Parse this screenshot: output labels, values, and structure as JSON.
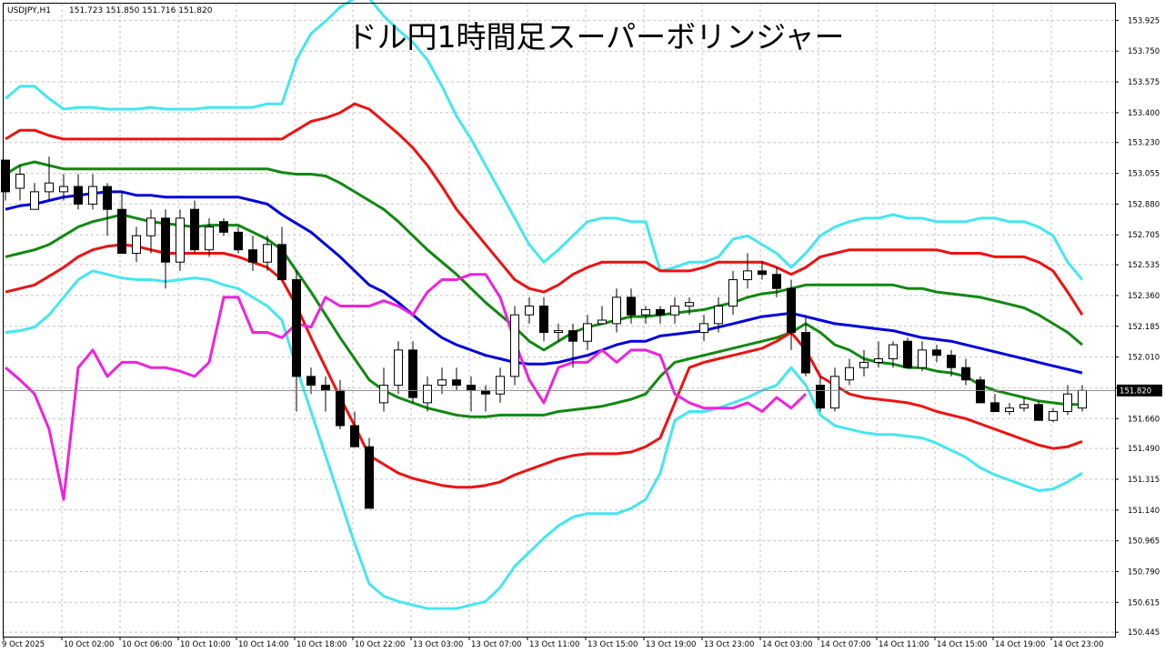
{
  "header": {
    "symbol": "USDJPY,H1",
    "ohlc": "151.723 151.850 151.716 151.820"
  },
  "chart_data": {
    "type": "candlestick",
    "title": "ドル円1時間足スーパーボリンジャー",
    "current_price": 151.82,
    "current_price_label": "151.820",
    "ylim": [
      150.42,
      154.02
    ],
    "y_ticks": [
      "153.925",
      "153.750",
      "153.575",
      "153.400",
      "153.230",
      "153.055",
      "152.880",
      "152.705",
      "152.535",
      "152.360",
      "152.185",
      "152.010",
      "151.835",
      "151.660",
      "151.490",
      "151.315",
      "151.140",
      "150.965",
      "150.790",
      "150.615",
      "150.445"
    ],
    "x_ticks": [
      "9 Oct 2025",
      "10 Oct 02:00",
      "10 Oct 06:00",
      "10 Oct 10:00",
      "10 Oct 14:00",
      "10 Oct 18:00",
      "10 Oct 22:00",
      "13 Oct 03:00",
      "13 Oct 07:00",
      "13 Oct 11:00",
      "13 Oct 15:00",
      "13 Oct 19:00",
      "13 Oct 23:00",
      "14 Oct 03:00",
      "14 Oct 07:00",
      "14 Oct 11:00",
      "14 Oct 15:00",
      "14 Oct 19:00",
      "14 Oct 23:00"
    ],
    "grid": true,
    "candles": [
      [
        153.13,
        153.13,
        152.9,
        152.95
      ],
      [
        152.97,
        153.1,
        152.9,
        153.05
      ],
      [
        152.85,
        153.0,
        152.85,
        152.95
      ],
      [
        152.95,
        153.15,
        152.9,
        153.0
      ],
      [
        152.95,
        153.05,
        152.9,
        152.98
      ],
      [
        152.98,
        153.05,
        152.85,
        152.88
      ],
      [
        152.88,
        153.05,
        152.85,
        152.98
      ],
      [
        152.98,
        153.0,
        152.7,
        152.85
      ],
      [
        152.85,
        152.95,
        152.6,
        152.6
      ],
      [
        152.6,
        152.75,
        152.55,
        152.7
      ],
      [
        152.7,
        152.85,
        152.6,
        152.8
      ],
      [
        152.8,
        152.85,
        152.4,
        152.55
      ],
      [
        152.55,
        152.85,
        152.5,
        152.8
      ],
      [
        152.85,
        152.9,
        152.6,
        152.62
      ],
      [
        152.62,
        152.8,
        152.58,
        152.75
      ],
      [
        152.78,
        152.8,
        152.7,
        152.72
      ],
      [
        152.72,
        152.75,
        152.6,
        152.62
      ],
      [
        152.62,
        152.7,
        152.5,
        152.55
      ],
      [
        152.55,
        152.7,
        152.5,
        152.65
      ],
      [
        152.65,
        152.75,
        152.45,
        152.45
      ],
      [
        152.45,
        152.5,
        151.7,
        151.9
      ],
      [
        151.9,
        151.95,
        151.8,
        151.85
      ],
      [
        151.85,
        151.9,
        151.7,
        151.82
      ],
      [
        151.82,
        151.88,
        151.6,
        151.62
      ],
      [
        151.62,
        151.7,
        151.5,
        151.5
      ],
      [
        151.5,
        151.55,
        151.15,
        151.15
      ],
      [
        151.75,
        151.95,
        151.7,
        151.85
      ],
      [
        151.85,
        152.1,
        151.8,
        152.05
      ],
      [
        152.05,
        152.1,
        151.75,
        151.78
      ],
      [
        151.75,
        151.9,
        151.7,
        151.85
      ],
      [
        151.85,
        151.95,
        151.8,
        151.88
      ],
      [
        151.88,
        151.95,
        151.82,
        151.85
      ],
      [
        151.85,
        151.9,
        151.7,
        151.82
      ],
      [
        151.82,
        151.85,
        151.7,
        151.8
      ],
      [
        151.8,
        151.95,
        151.75,
        151.9
      ],
      [
        151.9,
        152.3,
        151.85,
        152.25
      ],
      [
        152.25,
        152.35,
        152.2,
        152.3
      ],
      [
        152.3,
        152.35,
        152.1,
        152.15
      ],
      [
        152.15,
        152.2,
        152.1,
        152.16
      ],
      [
        152.16,
        152.2,
        151.95,
        152.1
      ],
      [
        152.1,
        152.25,
        152.05,
        152.2
      ],
      [
        152.2,
        152.3,
        152.2,
        152.22
      ],
      [
        152.2,
        152.4,
        152.15,
        152.35
      ],
      [
        152.35,
        152.4,
        152.2,
        152.25
      ],
      [
        152.25,
        152.3,
        152.2,
        152.28
      ],
      [
        152.28,
        152.3,
        152.2,
        152.25
      ],
      [
        152.25,
        152.35,
        152.2,
        152.3
      ],
      [
        152.3,
        152.35,
        152.25,
        152.32
      ],
      [
        152.15,
        152.25,
        152.1,
        152.2
      ],
      [
        152.2,
        152.35,
        152.15,
        152.3
      ],
      [
        152.3,
        152.5,
        152.25,
        152.45
      ],
      [
        152.45,
        152.6,
        152.4,
        152.5
      ],
      [
        152.5,
        152.55,
        152.45,
        152.48
      ],
      [
        152.48,
        152.52,
        152.35,
        152.4
      ],
      [
        152.4,
        152.45,
        152.05,
        152.15
      ],
      [
        152.15,
        152.25,
        151.9,
        151.92
      ],
      [
        151.85,
        151.9,
        151.7,
        151.72
      ],
      [
        151.72,
        151.95,
        151.7,
        151.9
      ],
      [
        151.88,
        152.0,
        151.85,
        151.95
      ],
      [
        151.95,
        152.05,
        151.9,
        151.98
      ],
      [
        151.98,
        152.1,
        151.95,
        152.0
      ],
      [
        152.0,
        152.1,
        151.95,
        152.08
      ],
      [
        152.1,
        152.12,
        151.95,
        151.95
      ],
      [
        151.95,
        152.1,
        151.93,
        152.05
      ],
      [
        152.05,
        152.08,
        151.98,
        152.02
      ],
      [
        152.02,
        152.05,
        151.9,
        151.95
      ],
      [
        151.95,
        152.0,
        151.85,
        151.88
      ],
      [
        151.88,
        151.9,
        151.75,
        151.75
      ],
      [
        151.75,
        151.8,
        151.7,
        151.7
      ],
      [
        151.7,
        151.75,
        151.68,
        151.72
      ],
      [
        151.72,
        151.78,
        151.7,
        151.74
      ],
      [
        151.74,
        151.76,
        151.65,
        151.65
      ],
      [
        151.65,
        151.72,
        151.64,
        151.7
      ],
      [
        151.7,
        151.85,
        151.68,
        151.8
      ],
      [
        151.72,
        151.85,
        151.7,
        151.82
      ]
    ],
    "series": [
      {
        "name": "",
        "color": "#44e6f0",
        "values": [
          153.48,
          153.55,
          153.55,
          153.48,
          153.42,
          153.43,
          153.43,
          153.42,
          153.42,
          153.42,
          153.43,
          153.42,
          153.42,
          153.42,
          153.43,
          153.43,
          153.43,
          153.43,
          153.45,
          153.45,
          153.7,
          153.85,
          153.92,
          154.0,
          154.05,
          154.05,
          153.95,
          153.87,
          153.8,
          153.7,
          153.55,
          153.38,
          153.25,
          153.1,
          152.95,
          152.8,
          152.65,
          152.55,
          152.62,
          152.7,
          152.78,
          152.8,
          152.8,
          152.78,
          152.78,
          152.5,
          152.52,
          152.55,
          152.55,
          152.58,
          152.68,
          152.7,
          152.65,
          152.6,
          152.52,
          152.6,
          152.7,
          152.75,
          152.78,
          152.8,
          152.8,
          152.82,
          152.8,
          152.8,
          152.78,
          152.78,
          152.78,
          152.8,
          152.8,
          152.78,
          152.78,
          152.75,
          152.7,
          152.55,
          152.45
        ]
      },
      {
        "name": "",
        "color": "#ee1111",
        "values": [
          153.25,
          153.3,
          153.3,
          153.27,
          153.25,
          153.25,
          153.25,
          153.25,
          153.25,
          153.25,
          153.25,
          153.25,
          153.25,
          153.25,
          153.25,
          153.25,
          153.25,
          153.25,
          153.25,
          153.25,
          153.3,
          153.35,
          153.37,
          153.4,
          153.45,
          153.42,
          153.35,
          153.28,
          153.2,
          153.1,
          152.98,
          152.85,
          152.75,
          152.65,
          152.55,
          152.45,
          152.4,
          152.38,
          152.42,
          152.48,
          152.52,
          152.55,
          152.55,
          152.55,
          152.55,
          152.5,
          152.5,
          152.5,
          152.52,
          152.55,
          152.55,
          152.55,
          152.55,
          152.52,
          152.48,
          152.52,
          152.58,
          152.6,
          152.62,
          152.62,
          152.62,
          152.62,
          152.62,
          152.62,
          152.62,
          152.6,
          152.6,
          152.6,
          152.58,
          152.58,
          152.58,
          152.55,
          152.5,
          152.38,
          152.25
        ]
      },
      {
        "name": "",
        "color": "#118811",
        "values": [
          153.05,
          153.1,
          153.12,
          153.1,
          153.08,
          153.08,
          153.08,
          153.08,
          153.08,
          153.08,
          153.08,
          153.08,
          153.08,
          153.08,
          153.08,
          153.08,
          153.08,
          153.08,
          153.08,
          153.06,
          153.05,
          153.05,
          153.04,
          153.0,
          152.95,
          152.9,
          152.85,
          152.78,
          152.7,
          152.62,
          152.55,
          152.48,
          152.4,
          152.32,
          152.25,
          152.18,
          152.1,
          152.05,
          152.1,
          152.15,
          152.18,
          152.2,
          152.22,
          152.24,
          152.24,
          152.25,
          152.26,
          152.27,
          152.28,
          152.3,
          152.32,
          152.35,
          152.37,
          152.38,
          152.4,
          152.42,
          152.42,
          152.42,
          152.42,
          152.42,
          152.42,
          152.42,
          152.4,
          152.4,
          152.38,
          152.37,
          152.36,
          152.35,
          152.33,
          152.31,
          152.29,
          152.25,
          152.2,
          152.15,
          152.08
        ]
      },
      {
        "name": "",
        "color": "#0000dd",
        "values": [
          152.85,
          152.87,
          152.88,
          152.9,
          152.92,
          152.93,
          152.94,
          152.95,
          152.95,
          152.93,
          152.93,
          152.92,
          152.92,
          152.92,
          152.92,
          152.92,
          152.92,
          152.9,
          152.88,
          152.82,
          152.77,
          152.72,
          152.65,
          152.58,
          152.5,
          152.42,
          152.38,
          152.32,
          152.25,
          152.18,
          152.12,
          152.08,
          152.05,
          152.02,
          152.0,
          151.98,
          151.97,
          151.97,
          151.98,
          152.0,
          152.02,
          152.05,
          152.08,
          152.1,
          152.1,
          152.13,
          152.14,
          152.15,
          152.16,
          152.18,
          152.2,
          152.22,
          152.24,
          152.25,
          152.26,
          152.24,
          152.22,
          152.2,
          152.19,
          152.18,
          152.17,
          152.16,
          152.14,
          152.12,
          152.11,
          152.1,
          152.08,
          152.06,
          152.04,
          152.02,
          152.0,
          151.98,
          151.96,
          151.94,
          151.92
        ]
      },
      {
        "name": "",
        "color": "#118811",
        "values": [
          152.58,
          152.6,
          152.62,
          152.65,
          152.7,
          152.75,
          152.78,
          152.8,
          152.82,
          152.8,
          152.78,
          152.77,
          152.76,
          152.75,
          152.76,
          152.76,
          152.76,
          152.72,
          152.68,
          152.62,
          152.5,
          152.38,
          152.25,
          152.12,
          152.0,
          151.88,
          151.82,
          151.78,
          151.75,
          151.72,
          151.7,
          151.68,
          151.67,
          151.67,
          151.68,
          151.68,
          151.68,
          151.68,
          151.7,
          151.71,
          151.72,
          151.73,
          151.75,
          151.77,
          151.8,
          151.9,
          151.98,
          152.0,
          152.02,
          152.04,
          152.06,
          152.08,
          152.1,
          152.12,
          152.15,
          152.2,
          152.15,
          152.08,
          152.05,
          152.0,
          151.98,
          151.97,
          151.95,
          151.95,
          151.93,
          151.92,
          151.9,
          151.85,
          151.82,
          151.8,
          151.78,
          151.76,
          151.75,
          151.74,
          151.74
        ]
      },
      {
        "name": "",
        "color": "#ee1111",
        "values": [
          152.38,
          152.4,
          152.42,
          152.47,
          152.52,
          152.58,
          152.62,
          152.64,
          152.65,
          152.64,
          152.62,
          152.6,
          152.6,
          152.6,
          152.6,
          152.6,
          152.58,
          152.55,
          152.52,
          152.45,
          152.3,
          152.12,
          151.95,
          151.78,
          151.62,
          151.45,
          151.4,
          151.35,
          151.32,
          151.3,
          151.28,
          151.27,
          151.27,
          151.28,
          151.3,
          151.34,
          151.37,
          151.4,
          151.43,
          151.45,
          151.46,
          151.46,
          151.46,
          151.47,
          151.5,
          151.55,
          151.75,
          151.95,
          151.98,
          152.0,
          152.02,
          152.04,
          152.06,
          152.1,
          152.15,
          152.05,
          151.9,
          151.85,
          151.8,
          151.78,
          151.77,
          151.76,
          151.75,
          151.73,
          151.7,
          151.68,
          151.66,
          151.63,
          151.6,
          151.57,
          151.54,
          151.51,
          151.49,
          151.5,
          151.53
        ]
      },
      {
        "name": "",
        "color": "#44e6f0",
        "values": [
          152.15,
          152.16,
          152.18,
          152.25,
          152.35,
          152.45,
          152.5,
          152.48,
          152.46,
          152.45,
          152.45,
          152.44,
          152.45,
          152.46,
          152.45,
          152.42,
          152.4,
          152.35,
          152.3,
          152.22,
          151.95,
          151.7,
          151.45,
          151.2,
          150.95,
          150.72,
          150.65,
          150.62,
          150.6,
          150.58,
          150.58,
          150.58,
          150.6,
          150.62,
          150.7,
          150.82,
          150.9,
          150.98,
          151.05,
          151.1,
          151.12,
          151.12,
          151.12,
          151.15,
          151.2,
          151.35,
          151.65,
          151.7,
          151.7,
          151.72,
          151.75,
          151.78,
          151.82,
          151.85,
          151.95,
          151.85,
          151.68,
          151.62,
          151.6,
          151.58,
          151.57,
          151.57,
          151.56,
          151.55,
          151.52,
          151.48,
          151.44,
          151.38,
          151.34,
          151.31,
          151.28,
          151.25,
          151.26,
          151.3,
          151.35
        ]
      },
      {
        "name": "",
        "color": "#ee22dd",
        "values": [
          151.95,
          151.88,
          151.8,
          151.6,
          151.2,
          151.95,
          152.05,
          151.9,
          151.98,
          151.98,
          151.95,
          151.95,
          151.93,
          151.9,
          151.98,
          152.35,
          152.35,
          152.15,
          152.15,
          152.12,
          152.2,
          152.18,
          152.35,
          152.3,
          152.3,
          152.3,
          152.33,
          152.3,
          152.25,
          152.38,
          152.45,
          152.45,
          152.48,
          152.48,
          152.35,
          152.1,
          151.88,
          151.75,
          151.95,
          151.98,
          151.98,
          152.05,
          151.98,
          152.05,
          152.05,
          152.02,
          151.8,
          151.75,
          151.72,
          151.72,
          151.72,
          151.75,
          151.7,
          151.78,
          151.72,
          151.8,
          null,
          null,
          null,
          null,
          null,
          null,
          null,
          null,
          null,
          null,
          null,
          null,
          null,
          null,
          null,
          null,
          null,
          null,
          null
        ]
      }
    ]
  }
}
